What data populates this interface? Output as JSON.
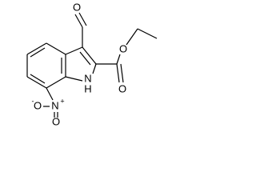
{
  "atoms": [
    {
      "label": "O"
    },
    {
      "label": "O"
    },
    {
      "label": "O"
    },
    {
      "label": "N"
    },
    {
      "label": "H"
    },
    {
      "label": "N",
      "charge": "+"
    },
    {
      "label": "O",
      "charge": "-"
    },
    {
      "label": "O"
    }
  ]
}
